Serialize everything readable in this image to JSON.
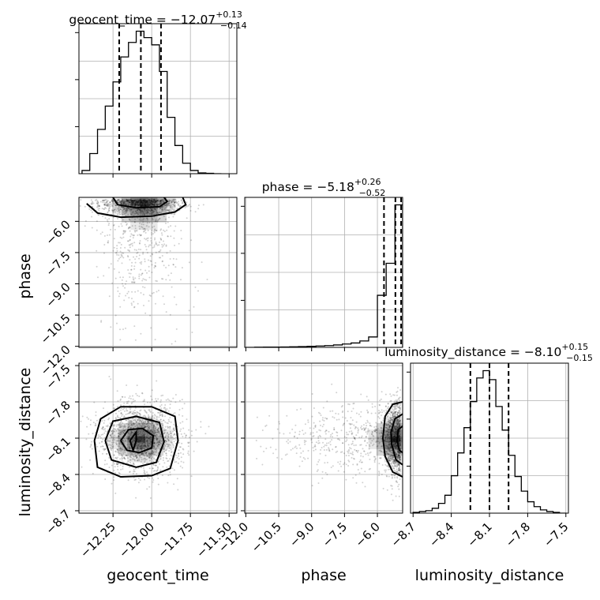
{
  "chart_data": {
    "type": "corner",
    "parameters": [
      "geocent_time",
      "phase",
      "luminosity_distance"
    ],
    "axis_labels": {
      "geocent_time": "geocent_time",
      "phase": "phase",
      "luminosity_distance": "luminosity_distance"
    },
    "titles": {
      "geocent_time": {
        "name": "geocent_time",
        "median": "−12.07",
        "plus": "+0.13",
        "minus": "−0.14"
      },
      "phase": {
        "name": "phase",
        "median": "−5.18",
        "plus": "+0.26",
        "minus": "−0.52"
      },
      "luminosity_distance": {
        "name": "luminosity_distance",
        "median": "−8.10",
        "plus": "+0.15",
        "minus": "−0.15"
      }
    },
    "ranges": {
      "geocent_time": [
        -12.47,
        -11.45
      ],
      "phase": [
        -12.05,
        -4.85
      ],
      "luminosity_distance": [
        -8.72,
        -7.48
      ]
    },
    "ticks": {
      "geocent_time": [
        -12.25,
        -12.0,
        -11.75,
        -11.5
      ],
      "phase": [
        -12.0,
        -10.5,
        -9.0,
        -7.5,
        -6.0
      ],
      "luminosity_distance": [
        -8.7,
        -8.4,
        -8.1,
        -7.8,
        -7.5
      ]
    },
    "tick_labels": {
      "geocent_time": [
        "−12.25",
        "−12.00",
        "−11.75",
        "−11.50"
      ],
      "phase": [
        "−12.0",
        "−10.5",
        "−9.0",
        "−7.5",
        "−6.0"
      ],
      "luminosity_distance": [
        "−8.7",
        "−8.4",
        "−8.1",
        "−7.8",
        "−7.5"
      ]
    },
    "quantiles": {
      "geocent_time": [
        -12.21,
        -12.07,
        -11.94
      ],
      "phase": [
        -5.7,
        -5.18,
        -4.92
      ],
      "luminosity_distance": [
        -8.25,
        -8.1,
        -7.95
      ]
    },
    "histograms": {
      "geocent_time": {
        "edges": [
          -12.45,
          -12.4,
          -12.35,
          -12.3,
          -12.25,
          -12.2,
          -12.15,
          -12.1,
          -12.05,
          -12.0,
          -11.95,
          -11.9,
          -11.85,
          -11.8,
          -11.75,
          -11.7,
          -11.65,
          -11.6,
          -11.55
        ],
        "counts": [
          4,
          25,
          55,
          84,
          114,
          145,
          163,
          177,
          169,
          160,
          127,
          70,
          35,
          13,
          4,
          1,
          0.5,
          0
        ]
      },
      "phase": {
        "edges": [
          -12.0,
          -11.6,
          -11.2,
          -10.8,
          -10.4,
          -10.0,
          -9.6,
          -9.2,
          -8.8,
          -8.4,
          -8.0,
          -7.6,
          -7.2,
          -6.8,
          -6.4,
          -6.0,
          -5.6,
          -5.2,
          -4.85
        ],
        "counts": [
          0,
          0.2,
          0.3,
          0.4,
          0.5,
          0.7,
          1.0,
          1.3,
          1.7,
          2.2,
          3.0,
          4.2,
          5.5,
          8,
          13,
          65,
          105,
          178
        ]
      },
      "luminosity_distance": {
        "edges": [
          -8.7,
          -8.65,
          -8.6,
          -8.55,
          -8.5,
          -8.45,
          -8.4,
          -8.35,
          -8.3,
          -8.25,
          -8.2,
          -8.15,
          -8.1,
          -8.05,
          -8.0,
          -7.95,
          -7.9,
          -7.85,
          -7.8,
          -7.75,
          -7.7,
          -7.65,
          -7.6,
          -7.55,
          -7.5
        ],
        "counts": [
          1,
          2,
          3,
          6,
          12,
          22,
          46,
          74,
          105,
          137,
          166,
          175,
          164,
          131,
          102,
          71,
          45,
          27,
          14,
          8,
          4,
          2,
          1,
          0
        ]
      }
    },
    "hist2d": [
      {
        "x": "geocent_time",
        "y": "phase",
        "center": [
          -12.05,
          -5.15
        ],
        "spread": [
          0.13,
          0.8
        ],
        "skew_tail": "phase_down",
        "contours": [
          [
            [
              -12.42,
              -5.15
            ],
            [
              -12.35,
              -5.6
            ],
            [
              -12.2,
              -5.8
            ],
            [
              -12.0,
              -5.75
            ],
            [
              -11.85,
              -5.55
            ],
            [
              -11.78,
              -5.2
            ],
            [
              -11.8,
              -4.85
            ]
          ],
          [
            [
              -12.25,
              -4.85
            ],
            [
              -12.22,
              -5.2
            ],
            [
              -12.1,
              -5.35
            ],
            [
              -11.95,
              -5.3
            ],
            [
              -11.9,
              -5.05
            ],
            [
              -11.92,
              -4.85
            ]
          ]
        ]
      },
      {
        "x": "geocent_time",
        "y": "luminosity_distance",
        "center": [
          -12.07,
          -8.11
        ],
        "spread": [
          0.13,
          0.12
        ],
        "contours": [
          [
            [
              -12.37,
              -8.12
            ],
            [
              -12.35,
              -8.34
            ],
            [
              -12.2,
              -8.42
            ],
            [
              -12.0,
              -8.41
            ],
            [
              -11.88,
              -8.35
            ],
            [
              -11.83,
              -8.12
            ],
            [
              -11.85,
              -7.92
            ],
            [
              -12.0,
              -7.84
            ],
            [
              -12.2,
              -7.84
            ],
            [
              -12.33,
              -7.94
            ],
            [
              -12.37,
              -8.12
            ]
          ],
          [
            [
              -12.3,
              -8.12
            ],
            [
              -12.26,
              -8.28
            ],
            [
              -12.1,
              -8.34
            ],
            [
              -11.97,
              -8.3
            ],
            [
              -11.92,
              -8.13
            ],
            [
              -11.95,
              -7.97
            ],
            [
              -12.1,
              -7.92
            ],
            [
              -12.25,
              -7.96
            ],
            [
              -12.3,
              -8.12
            ]
          ],
          [
            [
              -12.2,
              -8.12
            ],
            [
              -12.16,
              -8.2
            ],
            [
              -12.08,
              -8.22
            ],
            [
              -12.0,
              -8.18
            ],
            [
              -11.99,
              -8.08
            ],
            [
              -12.06,
              -8.02
            ],
            [
              -12.15,
              -8.03
            ],
            [
              -12.2,
              -8.12
            ]
          ],
          [
            [
              -12.14,
              -8.12
            ],
            [
              -12.12,
              -8.2
            ],
            [
              -12.1,
              -8.12
            ],
            [
              -12.1,
              -8.05
            ],
            [
              -12.14,
              -8.12
            ]
          ]
        ]
      },
      {
        "x": "phase",
        "y": "luminosity_distance",
        "center": [
          -5.15,
          -8.11
        ],
        "spread": [
          0.8,
          0.12
        ],
        "skew_tail": "phase_down",
        "contours": [
          [
            [
              -4.85,
              -8.42
            ],
            [
              -5.3,
              -8.38
            ],
            [
              -5.65,
              -8.25
            ],
            [
              -5.75,
              -8.1
            ],
            [
              -5.65,
              -7.92
            ],
            [
              -5.3,
              -7.82
            ],
            [
              -4.85,
              -7.8
            ]
          ],
          [
            [
              -4.85,
              -8.32
            ],
            [
              -5.15,
              -8.28
            ],
            [
              -5.35,
              -8.15
            ],
            [
              -5.38,
              -8.05
            ],
            [
              -5.2,
              -7.94
            ],
            [
              -4.85,
              -7.9
            ]
          ],
          [
            [
              -4.85,
              -8.22
            ],
            [
              -5.0,
              -8.2
            ],
            [
              -5.1,
              -8.12
            ],
            [
              -5.05,
              -8.03
            ],
            [
              -4.85,
              -8.0
            ]
          ]
        ]
      }
    ]
  }
}
